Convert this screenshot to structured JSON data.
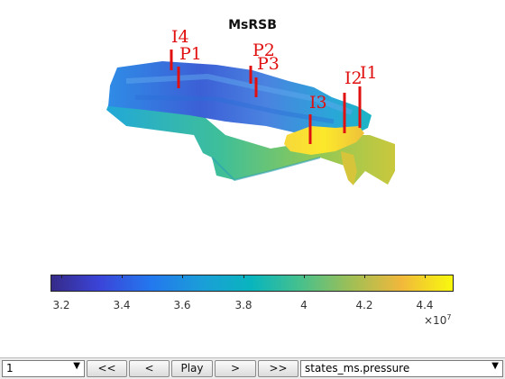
{
  "title": "MsRSB",
  "wells": {
    "I4": "I4",
    "P1": "P1",
    "P2": "P2",
    "P3": "P3",
    "I3": "I3",
    "I2": "I2",
    "I1": "I1"
  },
  "colorbar": {
    "ticks": [
      "3.2",
      "3.4",
      "3.6",
      "3.8",
      "4",
      "4.2",
      "4.4"
    ],
    "exponent_base": "×10",
    "exponent_power": "7",
    "min": 3.15,
    "max": 4.48,
    "colormap": "parula"
  },
  "toolbar": {
    "step_select_value": "1",
    "first_label": "<<",
    "prev_label": "<",
    "play_label": "Play",
    "next_label": ">",
    "last_label": ">>",
    "field_select_value": "states_ms.pressure"
  },
  "colors": {
    "well": "#e01010",
    "background": "#ffffff"
  }
}
